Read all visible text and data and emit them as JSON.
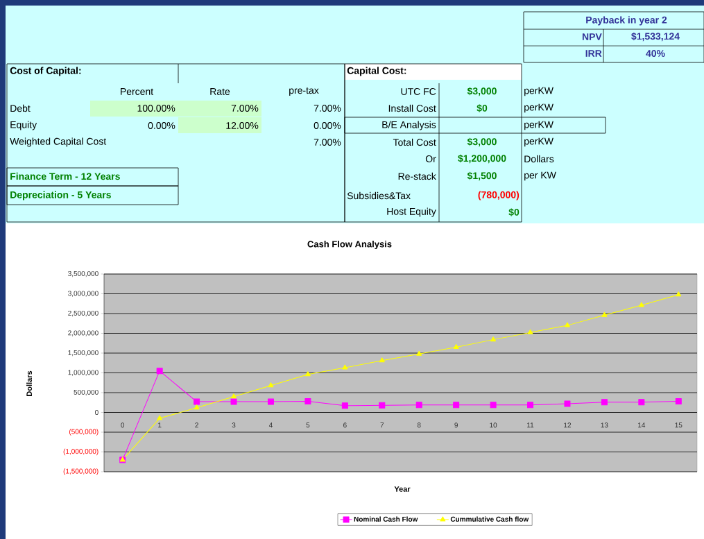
{
  "chart_data": [
    {
      "type": "other",
      "annotations": [
        "Payback in year 2",
        "NPV",
        "$1,533,124",
        "IRR",
        "40%",
        "Cost of Capital:",
        "Percent",
        "Rate",
        "pre-tax",
        "Debt",
        "100.00%",
        "7.00%",
        "7.00%",
        "Equity",
        "0.00%",
        "12.00%",
        "0.00%",
        "Weighted Capital Cost",
        "7.00%",
        "Finance Term - 12 Years",
        "Depreciation - 5 Years",
        "Capital Cost:",
        "UTC FC",
        "$3,000",
        "perKW",
        "Install Cost",
        "$0",
        "perKW",
        "B/E Analysis",
        "perKW",
        "Total Cost",
        "$3,000",
        "perKW",
        "Or",
        "$1,200,000",
        "Dollars",
        "Re-stack",
        "$1,500",
        "per KW",
        "Subsidies&Tax",
        "(780,000)",
        "Host Equity",
        "$0"
      ]
    },
    {
      "type": "line",
      "title": "Cash Flow Analysis",
      "xlabel": "Year",
      "ylabel": "Dollars",
      "categories": [
        "0",
        "1",
        "2",
        "3",
        "4",
        "5",
        "6",
        "7",
        "8",
        "9",
        "10",
        "11",
        "12",
        "13",
        "14",
        "15"
      ],
      "series": [
        {
          "name": "Nominal Cash Flow",
          "color": "#ff00ff",
          "marker": "square",
          "values": [
            -1200000,
            1050000,
            270000,
            270000,
            270000,
            280000,
            170000,
            180000,
            190000,
            190000,
            190000,
            190000,
            220000,
            260000,
            260000,
            280000
          ]
        },
        {
          "name": "Cummulative Cash flow",
          "color": "#ffff00",
          "marker": "triangle",
          "values": [
            -1200000,
            -150000,
            120000,
            400000,
            680000,
            960000,
            1130000,
            1310000,
            1480000,
            1650000,
            1840000,
            2020000,
            2200000,
            2460000,
            2710000,
            2980000
          ]
        }
      ],
      "ylim": [
        -1500000,
        3500000
      ],
      "yticks": [
        {
          "value": -1500000,
          "label": "(1,500,000)"
        },
        {
          "value": -1000000,
          "label": "(1,000,000)"
        },
        {
          "value": -500000,
          "label": "(500,000)"
        },
        0,
        {
          "value": 500000,
          "label": "500,000"
        },
        {
          "value": 1000000,
          "label": "1,000,000"
        },
        {
          "value": 1500000,
          "label": "1,500,000"
        },
        {
          "value": 2000000,
          "label": "2,000,000"
        },
        {
          "value": 2500000,
          "label": "2,500,000"
        },
        {
          "value": 3000000,
          "label": "3,000,000"
        },
        {
          "value": 3500000,
          "label": "3,500,000"
        }
      ],
      "grid": "y",
      "legend": "bottom"
    }
  ]
}
